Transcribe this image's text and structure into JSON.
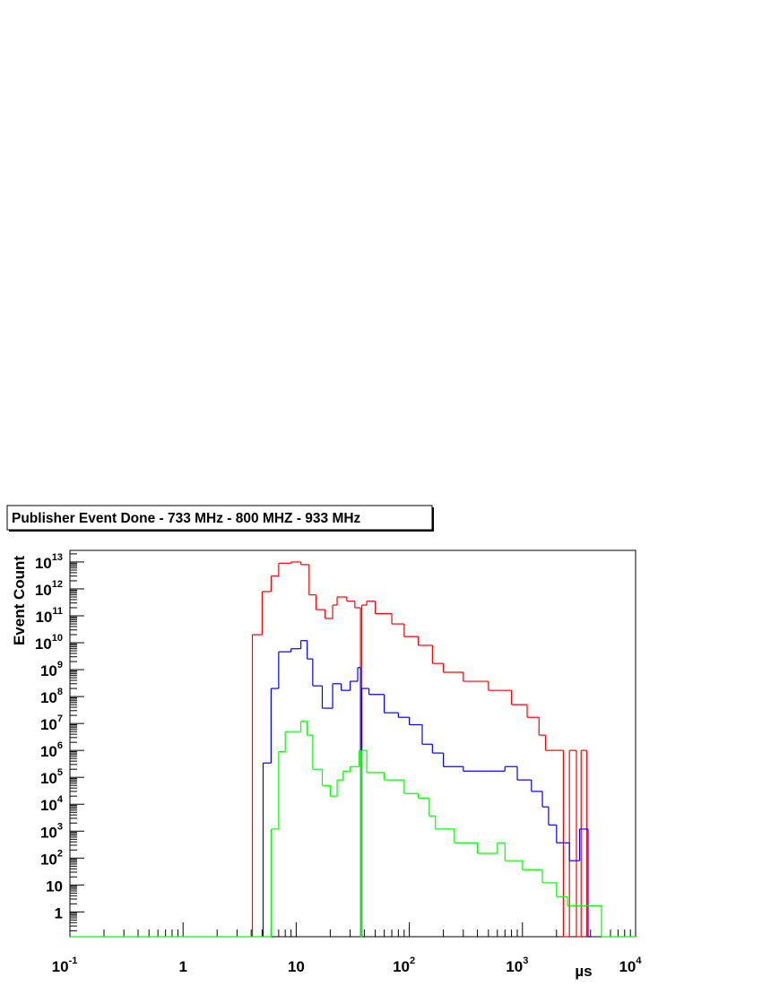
{
  "chart_data": {
    "type": "histogram",
    "title": "Publisher Event Done - 733 MHz - 800 MHZ - 933 MHz",
    "x_label": "µs",
    "y_label": "Event Count",
    "xlog": true,
    "ylog": true,
    "grid": false,
    "xlim": [
      0.1,
      10000
    ],
    "ylim": [
      0.12,
      27000000000000.0
    ],
    "xticks": [
      {
        "value": 0.1,
        "label": "10",
        "exponent": "-1"
      },
      1,
      10,
      {
        "value": 100,
        "label": "10",
        "exponent": "2"
      },
      {
        "value": 1000,
        "label": "10",
        "exponent": "3"
      },
      {
        "value": 10000,
        "label": "10",
        "exponent": "4"
      }
    ],
    "yticks": [
      1,
      10,
      {
        "value": 100,
        "label": "10",
        "exponent": "2"
      },
      {
        "value": 1000,
        "label": "10",
        "exponent": "3"
      },
      {
        "value": 10000,
        "label": "10",
        "exponent": "4"
      },
      {
        "value": 100000,
        "label": "10",
        "exponent": "5"
      },
      {
        "value": 1000000,
        "label": "10",
        "exponent": "6"
      },
      {
        "value": 10000000,
        "label": "10",
        "exponent": "7"
      },
      {
        "value": 100000000,
        "label": "10",
        "exponent": "8"
      },
      {
        "value": 1000000000,
        "label": "10",
        "exponent": "9"
      },
      {
        "value": 10000000000,
        "label": "10",
        "exponent": "10"
      },
      {
        "value": 100000000000,
        "label": "10",
        "exponent": "11"
      },
      {
        "value": 1000000000000,
        "label": "10",
        "exponent": "12"
      },
      {
        "value": 10000000000000,
        "label": "10",
        "exponent": "13"
      }
    ],
    "series": [
      {
        "color": "#ff0000",
        "bins": [
          4.1,
          5,
          6,
          7,
          9,
          11,
          13,
          15,
          18,
          21,
          23,
          28,
          33,
          37,
          38,
          42,
          50,
          70,
          90,
          120,
          160,
          200,
          300,
          500,
          800,
          1100,
          1400,
          1600,
          2000,
          2300,
          2600,
          3000,
          3300,
          3700,
          4000
        ],
        "values": [
          20000000000.0,
          800000000000.0,
          3000000000000.0,
          9000000000000.0,
          10000000000000.0,
          8000000000000.0,
          600000000000.0,
          170000000000.0,
          80000000000.0,
          250000000000.0,
          500000000000.0,
          350000000000.0,
          200000000000.0,
          0,
          250000000000.0,
          350000000000.0,
          120000000000.0,
          50000000000.0,
          17000000000.0,
          8000000000.0,
          1700000000.0,
          800000000.0,
          370000000.0,
          170000000.0,
          50000000.0,
          17000000.0,
          3700000.0,
          1000000.0,
          1000000.0,
          0,
          1000000.0,
          0,
          1000000.0,
          0
        ]
      },
      {
        "color": "#0000ff",
        "bins": [
          5.1,
          6,
          7,
          9,
          11,
          12.5,
          14,
          17,
          21,
          25,
          30,
          35,
          37,
          38,
          44,
          60,
          80,
          100,
          130,
          160,
          200,
          300,
          500,
          700,
          900,
          1200,
          1500,
          1700,
          2000,
          2600,
          3200,
          3800,
          4000
        ],
        "values": [
          340000.0,
          200000000.0,
          4600000000.0,
          6000000000.0,
          12000000000.0,
          2500000000.0,
          250000000.0,
          37000000.0,
          300000000.0,
          170000000.0,
          370000000.0,
          1200000000.0,
          0,
          200000000.0,
          120000000.0,
          25000000.0,
          17000000.0,
          9000000.0,
          1700000.0,
          800000.0,
          250000.0,
          170000.0,
          170000.0,
          250000.0,
          80000.0,
          30000.0,
          8000.0,
          1700,
          370,
          80,
          1200,
          0
        ]
      },
      {
        "color": "#00ff00",
        "bins": [
          0.1,
          6,
          7,
          8,
          11,
          12.5,
          14,
          17,
          20,
          23,
          26,
          30,
          36,
          37,
          38,
          42,
          60,
          90,
          120,
          150,
          170,
          250,
          400,
          600,
          700,
          1000,
          1500,
          2000,
          2500,
          5000,
          10000
        ],
        "values": [
          0,
          1200,
          900000.0,
          5000000.0,
          12000000.0,
          3700000.0,
          200000.0,
          50000.0,
          20000.0,
          80000.0,
          170000.0,
          250000.0,
          1000000.0,
          0,
          1000000.0,
          150000.0,
          80000.0,
          25000.0,
          17000.0,
          3700,
          1200,
          370,
          150,
          370,
          80,
          37,
          12,
          3.7,
          1.7,
          0
        ]
      }
    ]
  }
}
